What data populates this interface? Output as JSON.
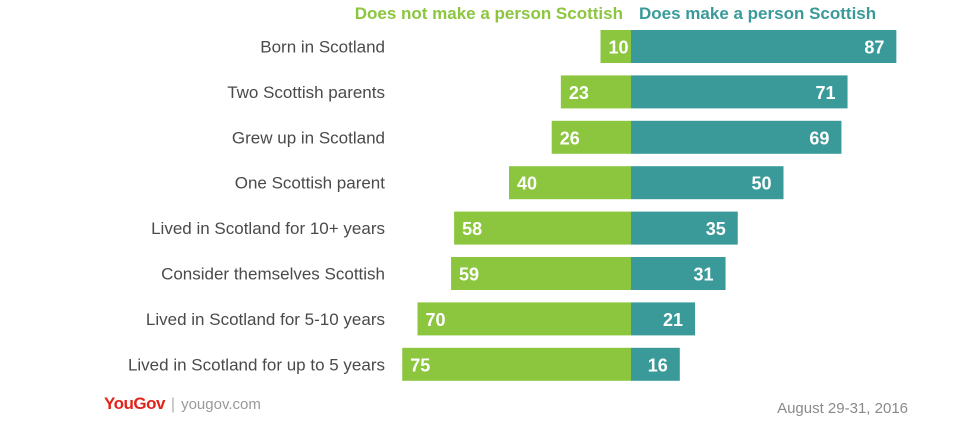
{
  "colors": {
    "negative": "#8cc63f",
    "positive": "#3a9a9a",
    "label_text": "#4a4a4a",
    "logo": "#e2231a"
  },
  "chart_data": {
    "type": "bar",
    "orientation": "horizontal-diverging",
    "legend": {
      "negative": "Does not make a person Scottish",
      "positive": "Does make a person Scottish"
    },
    "categories": [
      "Born in Scotland",
      "Two Scottish parents",
      "Grew up in Scotland",
      "One Scottish parent",
      "Lived in Scotland for 10+ years",
      "Consider themselves Scottish",
      "Lived in Scotland for 5-10 years",
      "Lived in Scotland for up to 5 years"
    ],
    "series": [
      {
        "name": "Does not make a person Scottish",
        "values": [
          10,
          23,
          26,
          40,
          58,
          59,
          70,
          75
        ]
      },
      {
        "name": "Does make a person Scottish",
        "values": [
          87,
          71,
          69,
          50,
          35,
          31,
          21,
          16
        ]
      }
    ],
    "xlim": [
      -75,
      87
    ],
    "grid": false
  },
  "footer": {
    "logo": "YouGov",
    "separator": "|",
    "site": "yougov.com",
    "date": "August 29-31, 2016"
  }
}
